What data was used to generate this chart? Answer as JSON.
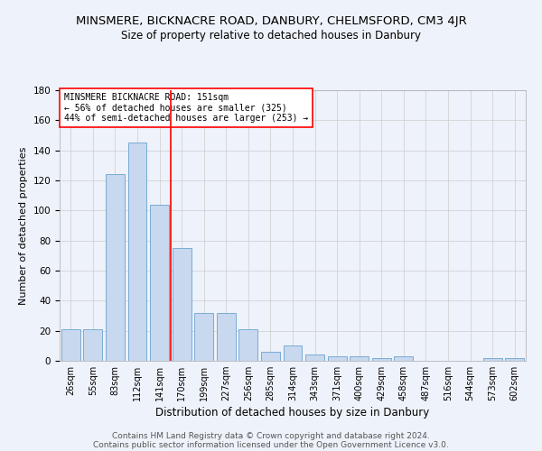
{
  "title": "MINSMERE, BICKNACRE ROAD, DANBURY, CHELMSFORD, CM3 4JR",
  "subtitle": "Size of property relative to detached houses in Danbury",
  "xlabel": "Distribution of detached houses by size in Danbury",
  "ylabel": "Number of detached properties",
  "categories": [
    "26sqm",
    "55sqm",
    "83sqm",
    "112sqm",
    "141sqm",
    "170sqm",
    "199sqm",
    "227sqm",
    "256sqm",
    "285sqm",
    "314sqm",
    "343sqm",
    "371sqm",
    "400sqm",
    "429sqm",
    "458sqm",
    "487sqm",
    "516sqm",
    "544sqm",
    "573sqm",
    "602sqm"
  ],
  "values": [
    21,
    21,
    124,
    145,
    104,
    75,
    32,
    32,
    21,
    6,
    10,
    4,
    3,
    3,
    2,
    3,
    0,
    0,
    0,
    2,
    2
  ],
  "bar_color": "#c8d8ee",
  "bar_edge_color": "#7aacd4",
  "red_line_x": 4.5,
  "annotation_text": "MINSMERE BICKNACRE ROAD: 151sqm\n← 56% of detached houses are smaller (325)\n44% of semi-detached houses are larger (253) →",
  "ylim": [
    0,
    180
  ],
  "yticks": [
    0,
    20,
    40,
    60,
    80,
    100,
    120,
    140,
    160,
    180
  ],
  "footer_line1": "Contains HM Land Registry data © Crown copyright and database right 2024.",
  "footer_line2": "Contains public sector information licensed under the Open Government Licence v3.0.",
  "bg_color": "#eef2fa",
  "grid_color": "#cccccc"
}
